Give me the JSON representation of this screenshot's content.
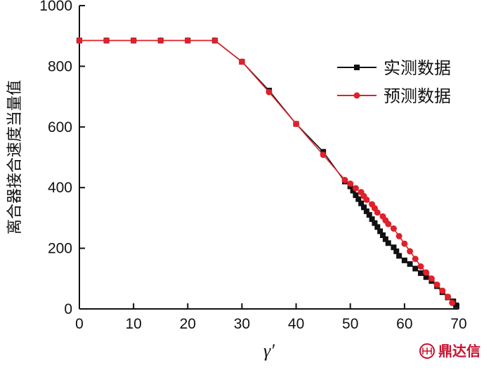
{
  "chart_data": {
    "type": "line",
    "title": "",
    "xlabel": "γ′",
    "ylabel": "离合器接合速度当量值",
    "xlim": [
      0,
      70
    ],
    "ylim": [
      0,
      1000
    ],
    "xticks": [
      "0",
      "10",
      "20",
      "30",
      "40",
      "50",
      "60",
      "70"
    ],
    "yticks": [
      "0",
      "200",
      "400",
      "600",
      "800",
      "1000"
    ],
    "grid": false,
    "legend_position": "upper-right",
    "series": [
      {
        "name": "实测数据",
        "color": "#111111",
        "marker": "square",
        "points": [
          [
            0,
            885
          ],
          [
            5,
            885
          ],
          [
            10,
            885
          ],
          [
            15,
            885
          ],
          [
            20,
            885
          ],
          [
            25,
            885
          ],
          [
            30,
            815
          ],
          [
            35,
            720
          ],
          [
            40,
            610
          ],
          [
            45,
            518
          ],
          [
            49,
            420
          ],
          [
            50,
            404
          ],
          [
            50.5,
            390
          ],
          [
            51,
            375
          ],
          [
            51.5,
            362
          ],
          [
            52,
            348
          ],
          [
            52.5,
            335
          ],
          [
            53,
            322
          ],
          [
            53.5,
            310
          ],
          [
            54,
            296
          ],
          [
            54.5,
            283
          ],
          [
            55,
            270
          ],
          [
            55.5,
            256
          ],
          [
            56,
            243
          ],
          [
            56.5,
            230
          ],
          [
            57,
            217
          ],
          [
            58,
            203
          ],
          [
            58.5,
            190
          ],
          [
            59,
            175
          ],
          [
            60,
            160
          ],
          [
            61,
            148
          ],
          [
            62,
            133
          ],
          [
            63,
            118
          ],
          [
            64,
            105
          ],
          [
            65,
            92
          ],
          [
            66,
            75
          ],
          [
            67,
            55
          ],
          [
            68,
            38
          ],
          [
            69,
            25
          ],
          [
            69.5,
            12
          ]
        ]
      },
      {
        "name": "预测数据",
        "color": "#e0202a",
        "marker": "circle",
        "points": [
          [
            0,
            885
          ],
          [
            5,
            885
          ],
          [
            10,
            885
          ],
          [
            15,
            885
          ],
          [
            20,
            885
          ],
          [
            25,
            885
          ],
          [
            30,
            815
          ],
          [
            35,
            715
          ],
          [
            40,
            610
          ],
          [
            45,
            508
          ],
          [
            49,
            425
          ],
          [
            50,
            413
          ],
          [
            51,
            398
          ],
          [
            52,
            385
          ],
          [
            52.5,
            372
          ],
          [
            53,
            360
          ],
          [
            54,
            345
          ],
          [
            54.5,
            332
          ],
          [
            55,
            318
          ],
          [
            56,
            305
          ],
          [
            56.5,
            292
          ],
          [
            57,
            280
          ],
          [
            58,
            265
          ],
          [
            59,
            240
          ],
          [
            60,
            215
          ],
          [
            61,
            190
          ],
          [
            62,
            165
          ],
          [
            63,
            140
          ],
          [
            64,
            120
          ],
          [
            65,
            100
          ],
          [
            66,
            80
          ],
          [
            67,
            60
          ],
          [
            68,
            40
          ],
          [
            68.8,
            20
          ]
        ]
      }
    ]
  },
  "watermark": {
    "text": "鼎达信",
    "color": "#c8102e"
  }
}
